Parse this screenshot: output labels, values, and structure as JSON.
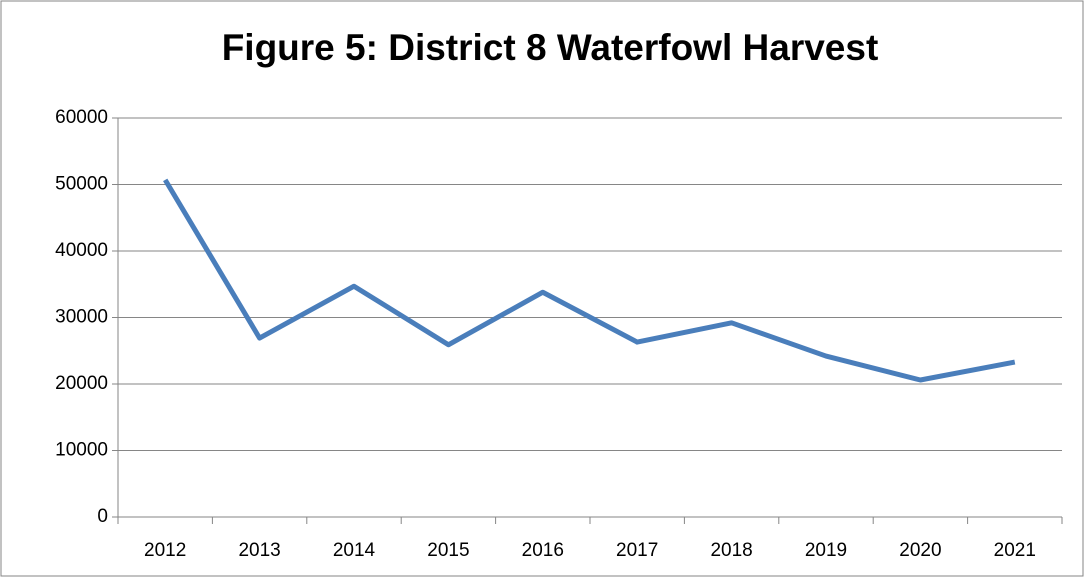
{
  "chart_data": {
    "type": "line",
    "title": "Figure 5: District 8 Waterfowl Harvest",
    "categories": [
      "2012",
      "2013",
      "2014",
      "2015",
      "2016",
      "2017",
      "2018",
      "2019",
      "2020",
      "2021"
    ],
    "series": [
      {
        "name": "Waterfowl Harvest",
        "color": "#4a7ebb",
        "values": [
          50700,
          26900,
          34700,
          25900,
          33800,
          26300,
          29200,
          24200,
          20600,
          23300
        ]
      }
    ],
    "ylim": [
      0,
      60000
    ],
    "yticks": [
      0,
      10000,
      20000,
      30000,
      40000,
      50000,
      60000
    ],
    "grid": true
  }
}
